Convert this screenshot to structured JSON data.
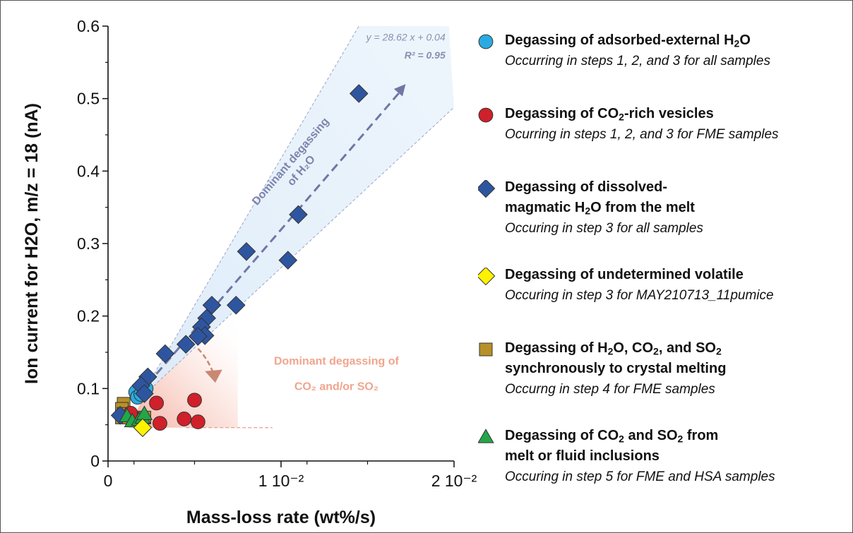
{
  "chart_data": {
    "type": "scatter",
    "xlabel": "Mass-loss rate (wt%/s)",
    "ylabel": "Ion current for H2O, m/z = 18 (nA)",
    "xlim": [
      0,
      0.02
    ],
    "ylim": [
      0,
      0.6
    ],
    "x_ticks": [
      0,
      0.01,
      0.02
    ],
    "x_tick_labels": [
      "0",
      "1 10⁻²",
      "2 10⁻²"
    ],
    "y_ticks": [
      0,
      0.1,
      0.2,
      0.3,
      0.4,
      0.5,
      0.6
    ],
    "y_tick_labels": [
      "0",
      "0.1",
      "0.2",
      "0.3",
      "0.4",
      "0.5",
      "0.6"
    ],
    "fit": {
      "equation": "y = 28.62 x + 0.04",
      "r2": "R² = 0.95",
      "slope": 28.62,
      "intercept": 0.04
    },
    "annotations": {
      "blue_arrow_label_line1": "Dominant degassing",
      "blue_arrow_label_line2": "of H₂O",
      "red_label_line1": "Dominant degassing of",
      "red_label_line2": "CO₂ and/or SO₂"
    },
    "series": [
      {
        "name": "Degassing of adsorbed-external H₂O",
        "marker": "circle",
        "color": "#29abe2",
        "points": [
          [
            0.0016,
            0.095
          ],
          [
            0.0017,
            0.088
          ],
          [
            0.0022,
            0.1
          ],
          [
            0.0019,
            0.092
          ]
        ]
      },
      {
        "name": "Degassing of CO₂-rich vesicles",
        "marker": "circle",
        "color": "#d0202a",
        "points": [
          [
            0.0028,
            0.08
          ],
          [
            0.003,
            0.052
          ],
          [
            0.0044,
            0.058
          ],
          [
            0.005,
            0.084
          ],
          [
            0.0052,
            0.054
          ],
          [
            0.0013,
            0.066
          ]
        ]
      },
      {
        "name": "Degassing of dissolved-magmatic H₂O from the melt",
        "marker": "diamond",
        "color": "#2e55a0",
        "points": [
          [
            0.0145,
            0.507
          ],
          [
            0.011,
            0.34
          ],
          [
            0.008,
            0.289
          ],
          [
            0.0104,
            0.277
          ],
          [
            0.006,
            0.215
          ],
          [
            0.0074,
            0.215
          ],
          [
            0.0057,
            0.197
          ],
          [
            0.0054,
            0.185
          ],
          [
            0.0056,
            0.173
          ],
          [
            0.0052,
            0.172
          ],
          [
            0.0045,
            0.161
          ],
          [
            0.0033,
            0.148
          ],
          [
            0.0023,
            0.116
          ],
          [
            0.0019,
            0.104
          ],
          [
            0.0021,
            0.093
          ],
          [
            0.0007,
            0.063
          ]
        ]
      },
      {
        "name": "Degassing of undetermined volatile",
        "marker": "diamond",
        "color": "#fff200",
        "points": [
          [
            0.002,
            0.046
          ]
        ]
      },
      {
        "name": "Degassing of H₂O, CO₂, and SO₂ synchronously to crystal melting",
        "marker": "square",
        "color": "#b89028",
        "points": [
          [
            0.0009,
            0.079
          ],
          [
            0.0008,
            0.072
          ],
          [
            0.0009,
            0.065
          ],
          [
            0.0008,
            0.06
          ],
          [
            0.0012,
            0.06
          ],
          [
            0.0021,
            0.06
          ]
        ]
      },
      {
        "name": "Degassing of CO₂ and SO₂ from melt or fluid inclusions",
        "marker": "triangle",
        "color": "#22a748",
        "points": [
          [
            0.0011,
            0.062
          ],
          [
            0.0014,
            0.055
          ],
          [
            0.0018,
            0.057
          ],
          [
            0.002,
            0.06
          ],
          [
            0.0021,
            0.065
          ]
        ]
      }
    ]
  },
  "legend": [
    {
      "symbol": "circle",
      "color": "#29abe2",
      "title_html": "Degassing of adsorbed-external H<sub>2</sub>O",
      "subtitle": "Occurring in steps 1, 2, and 3 for all samples"
    },
    {
      "symbol": "circle",
      "color": "#d0202a",
      "title_html": "Degassing of CO<sub>2</sub>-rich vesicles",
      "subtitle": "Ocurring in steps 1, 2, and 3 for FME samples"
    },
    {
      "symbol": "diamond",
      "color": "#2e55a0",
      "title_html": "Degassing of dissolved-<br>magmatic H<sub>2</sub>O from the melt",
      "subtitle": "Occuring in step 3 for all samples"
    },
    {
      "symbol": "diamond",
      "color": "#fff200",
      "title_html": "Degassing of undetermined volatile",
      "subtitle": "Occuring in step 3 for MAY210713_11pumice"
    },
    {
      "symbol": "square",
      "color": "#b89028",
      "title_html": "Degassing of H<sub>2</sub>O, CO<sub>2</sub>, and SO<sub>2</sub><br>synchronously to crystal melting",
      "subtitle": "Occurng in step 4 for FME samples"
    },
    {
      "symbol": "triangle",
      "color": "#22a748",
      "title_html": "Degassing of CO<sub>2</sub> and SO<sub>2</sub> from<br>melt or fluid inclusions",
      "subtitle": "Occuring in step 5 for FME and HSA samples"
    }
  ]
}
